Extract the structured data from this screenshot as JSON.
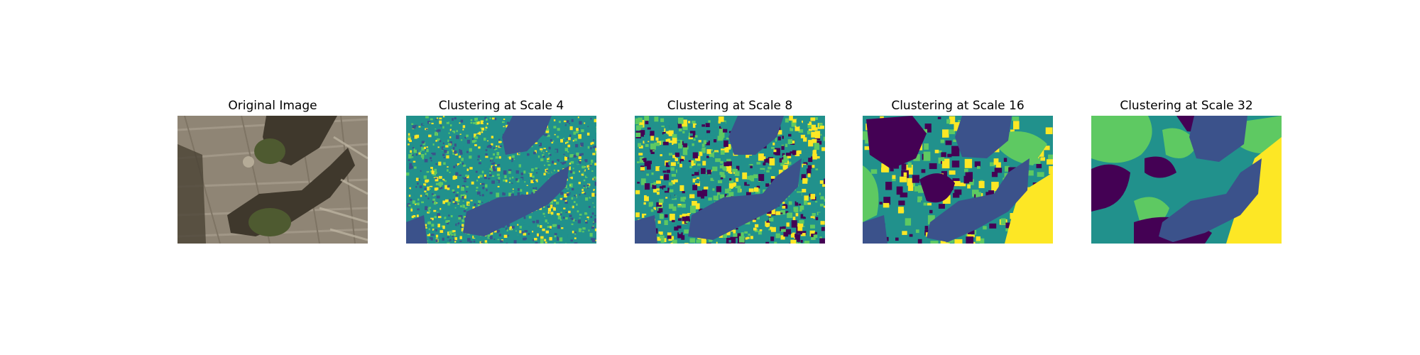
{
  "figure": {
    "panels": [
      {
        "title": "Original Image",
        "image_icon": "aerial-photo-icon"
      },
      {
        "title": "Clustering at Scale 4",
        "image_icon": "segmentation-map-icon"
      },
      {
        "title": "Clustering at Scale 8",
        "image_icon": "segmentation-map-icon"
      },
      {
        "title": "Clustering at Scale 16",
        "image_icon": "segmentation-map-icon"
      },
      {
        "title": "Clustering at Scale 32",
        "image_icon": "segmentation-map-icon"
      }
    ],
    "colors": {
      "photo_ground": "#8f8575",
      "photo_shadow": "#3f382c",
      "photo_bush": "#4e5a30",
      "cluster_purple": "#440154",
      "cluster_blue": "#3b528b",
      "cluster_teal": "#21918c",
      "cluster_green": "#5ec962",
      "cluster_yellow": "#fde725"
    }
  }
}
